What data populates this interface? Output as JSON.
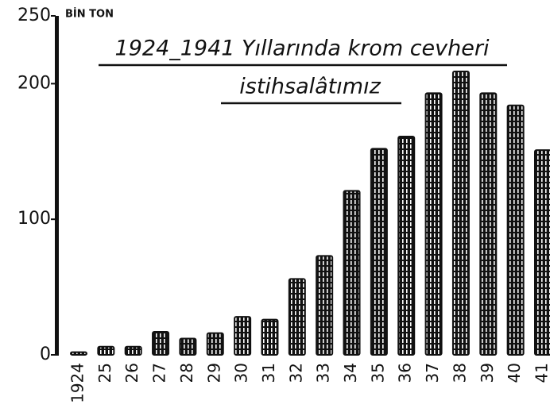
{
  "chart_data": {
    "type": "bar",
    "title": [
      "1924_1941 Yıllarında krom cevheri",
      "istihsalâtımız"
    ],
    "y_axis_label": "BİN TON",
    "categories": [
      "1924",
      "25",
      "26",
      "27",
      "28",
      "29",
      "30",
      "31",
      "32",
      "33",
      "34",
      "35",
      "36",
      "37",
      "38",
      "39",
      "40",
      "41"
    ],
    "values": [
      2,
      6,
      6,
      17,
      12,
      16,
      28,
      26,
      56,
      73,
      121,
      152,
      161,
      193,
      209,
      193,
      184,
      151
    ],
    "color": "#111111",
    "ylim": [
      0,
      250
    ],
    "yticks": [
      0,
      100,
      200,
      250
    ],
    "grid": false
  }
}
